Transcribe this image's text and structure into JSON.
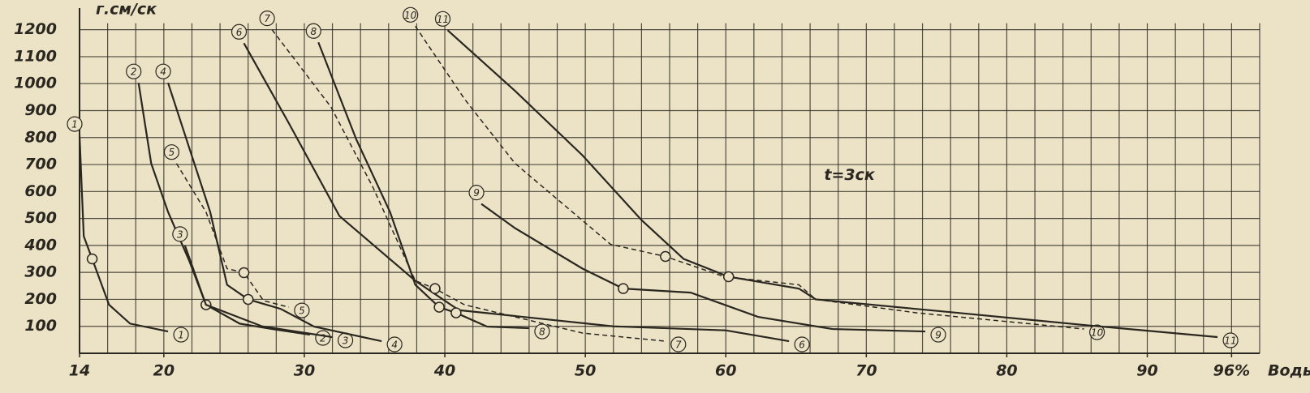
{
  "chart_data": {
    "type": "line",
    "y_label": "г.см/ск",
    "x_label": "Воды",
    "annotation": {
      "text": "t=3ск",
      "x": 67,
      "y": 660
    },
    "xlim": [
      14,
      98
    ],
    "ylim": [
      0,
      1250
    ],
    "xticks": [
      {
        "value": 14,
        "label": "14"
      },
      20,
      30,
      40,
      50,
      60,
      70,
      80,
      90,
      {
        "value": 96,
        "label": "96%"
      }
    ],
    "yticks": [
      100,
      200,
      300,
      400,
      500,
      600,
      700,
      800,
      900,
      1000,
      1100,
      1200
    ],
    "xgrid": [
      14,
      16,
      18,
      20,
      22,
      24,
      26,
      28,
      30,
      32,
      34,
      36,
      38,
      40,
      42,
      44,
      46,
      48,
      50,
      52,
      54,
      56,
      58,
      60,
      62,
      64,
      66,
      68,
      70,
      72,
      74,
      76,
      78,
      80,
      82,
      84,
      86,
      88,
      90,
      92,
      94,
      96,
      98
    ],
    "grid": true,
    "color": "#2a2620",
    "series": [
      {
        "name": "1",
        "dash": false,
        "markers": [
          2
        ],
        "x": [
          14.0,
          14.3,
          14.9,
          16.1,
          17.6,
          20.3
        ],
        "values": [
          808,
          434,
          350,
          180,
          110,
          81
        ]
      },
      {
        "name": "2",
        "dash": false,
        "markers": [
          4
        ],
        "x": [
          18.2,
          19.1,
          20.3,
          21.8,
          23.0,
          25.4,
          27.7,
          30.4
        ],
        "values": [
          1003,
          704,
          524,
          344,
          180,
          110,
          90,
          69
        ]
      },
      {
        "name": "3",
        "dash": false,
        "markers": [],
        "x": [
          21.5,
          23.0,
          27.0,
          32.0
        ],
        "values": [
          400,
          180,
          100,
          60
        ]
      },
      {
        "name": "4",
        "dash": false,
        "markers": [
          4
        ],
        "x": [
          20.3,
          21.8,
          23.3,
          24.5,
          26.0,
          28.3,
          30.7,
          35.5
        ],
        "values": [
          1003,
          763,
          524,
          254,
          200,
          165,
          99,
          45
        ]
      },
      {
        "name": "5",
        "dash": true,
        "markers": [
          3
        ],
        "x": [
          20.9,
          23.0,
          24.5,
          25.7,
          27.1,
          28.9
        ],
        "values": [
          704,
          524,
          314,
          299,
          195,
          171
        ]
      },
      {
        "name": "6",
        "dash": false,
        "markers": [],
        "x": [
          25.7,
          28.9,
          32.5,
          37.9,
          41.0,
          52.0,
          60.0,
          64.5
        ],
        "values": [
          1150,
          853,
          509,
          269,
          160,
          100,
          85,
          45
        ]
      },
      {
        "name": "7",
        "dash": true,
        "markers": [
          4
        ],
        "x": [
          27.7,
          31.9,
          34.9,
          37.9,
          39.3,
          41.4,
          43.8,
          49.8,
          55.7
        ],
        "values": [
          1200,
          913,
          614,
          269,
          240,
          180,
          150,
          75,
          45
        ]
      },
      {
        "name": "8",
        "dash": false,
        "markers": [
          4,
          5
        ],
        "x": [
          31.0,
          33.7,
          36.1,
          37.9,
          39.6,
          40.8,
          43.0,
          46.0
        ],
        "values": [
          1153,
          793,
          524,
          254,
          171,
          150,
          99,
          93
        ]
      },
      {
        "name": "9",
        "dash": false,
        "markers": [
          3
        ],
        "x": [
          42.6,
          45.0,
          49.8,
          52.7,
          57.5,
          62.3,
          67.6,
          74.2
        ],
        "values": [
          554,
          464,
          314,
          240,
          225,
          135,
          90,
          81
        ]
      },
      {
        "name": "10",
        "dash": true,
        "markers": [
          4
        ],
        "x": [
          37.9,
          41.4,
          45.0,
          51.8,
          55.7,
          59.9,
          65.2,
          66.4,
          73.6,
          85.5
        ],
        "values": [
          1213,
          943,
          704,
          404,
          359,
          284,
          254,
          200,
          150,
          90
        ]
      },
      {
        "name": "11",
        "dash": false,
        "markers": [
          5
        ],
        "x": [
          40.2,
          45.0,
          49.8,
          54.0,
          57.0,
          60.2,
          65.2,
          66.4,
          76.5,
          85.5,
          95.0
        ],
        "values": [
          1198,
          973,
          734,
          494,
          350,
          284,
          240,
          200,
          150,
          105,
          60
        ]
      }
    ]
  }
}
